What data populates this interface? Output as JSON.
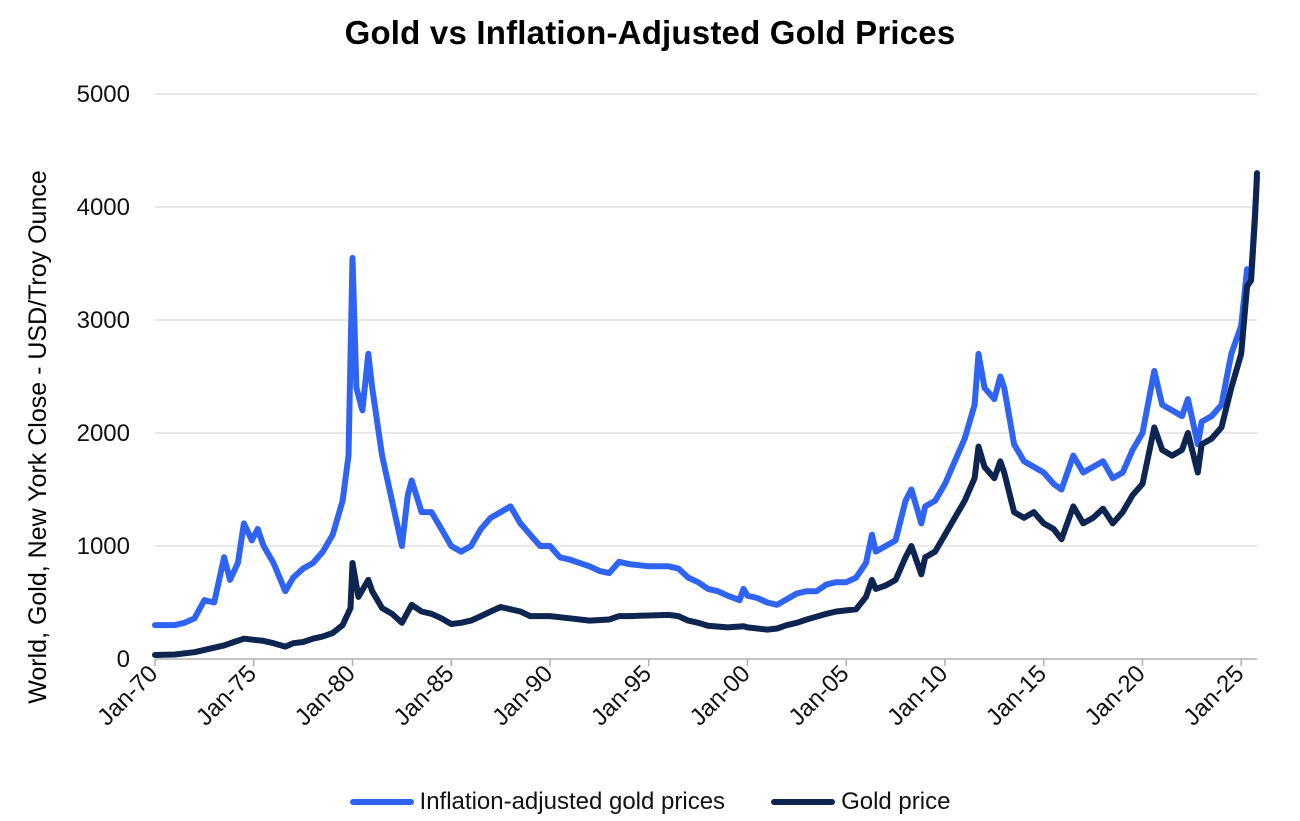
{
  "chart_data": {
    "type": "line",
    "title": "Gold vs Inflation-Adjusted Gold Prices",
    "ylabel": "World, Gold, New York Close - USD/Troy Ounce",
    "xlabel": "",
    "ylim": [
      0,
      5000
    ],
    "y_ticks": [
      "0",
      "1000",
      "2000",
      "3000",
      "4000",
      "5000"
    ],
    "x_range": [
      1970.0,
      2025.8
    ],
    "x_ticks": [
      {
        "label": "Jan-70",
        "year": 1970
      },
      {
        "label": "Jan-75",
        "year": 1975
      },
      {
        "label": "Jan-80",
        "year": 1980
      },
      {
        "label": "Jan-85",
        "year": 1985
      },
      {
        "label": "Jan-90",
        "year": 1990
      },
      {
        "label": "Jan-95",
        "year": 1995
      },
      {
        "label": "Jan-00",
        "year": 2000
      },
      {
        "label": "Jan-05",
        "year": 2005
      },
      {
        "label": "Jan-10",
        "year": 2010
      },
      {
        "label": "Jan-15",
        "year": 2015
      },
      {
        "label": "Jan-20",
        "year": 2020
      },
      {
        "label": "Jan-25",
        "year": 2025
      }
    ],
    "grid": true,
    "legend_position": "bottom",
    "series": [
      {
        "name": "Inflation-adjusted gold prices",
        "color": "#2f63f2",
        "points": [
          [
            1970.0,
            300
          ],
          [
            1971.0,
            300
          ],
          [
            1971.5,
            320
          ],
          [
            1972.0,
            360
          ],
          [
            1972.5,
            520
          ],
          [
            1973.0,
            500
          ],
          [
            1973.5,
            900
          ],
          [
            1973.8,
            700
          ],
          [
            1974.2,
            850
          ],
          [
            1974.5,
            1200
          ],
          [
            1974.9,
            1050
          ],
          [
            1975.2,
            1150
          ],
          [
            1975.5,
            1000
          ],
          [
            1976.0,
            850
          ],
          [
            1976.6,
            600
          ],
          [
            1977.0,
            720
          ],
          [
            1977.5,
            800
          ],
          [
            1978.0,
            850
          ],
          [
            1978.5,
            950
          ],
          [
            1979.0,
            1100
          ],
          [
            1979.5,
            1400
          ],
          [
            1979.8,
            1800
          ],
          [
            1980.0,
            3550
          ],
          [
            1980.2,
            2400
          ],
          [
            1980.5,
            2200
          ],
          [
            1980.8,
            2700
          ],
          [
            1981.0,
            2400
          ],
          [
            1981.5,
            1800
          ],
          [
            1982.0,
            1400
          ],
          [
            1982.5,
            1000
          ],
          [
            1982.8,
            1450
          ],
          [
            1983.0,
            1580
          ],
          [
            1983.5,
            1300
          ],
          [
            1984.0,
            1300
          ],
          [
            1984.5,
            1150
          ],
          [
            1985.0,
            1000
          ],
          [
            1985.5,
            950
          ],
          [
            1986.0,
            1000
          ],
          [
            1986.5,
            1150
          ],
          [
            1987.0,
            1250
          ],
          [
            1987.5,
            1300
          ],
          [
            1988.0,
            1350
          ],
          [
            1988.5,
            1200
          ],
          [
            1989.0,
            1100
          ],
          [
            1989.5,
            1000
          ],
          [
            1990.0,
            1000
          ],
          [
            1990.5,
            900
          ],
          [
            1991.0,
            880
          ],
          [
            1992.0,
            820
          ],
          [
            1992.5,
            780
          ],
          [
            1993.0,
            760
          ],
          [
            1993.5,
            860
          ],
          [
            1994.0,
            840
          ],
          [
            1995.0,
            820
          ],
          [
            1996.0,
            820
          ],
          [
            1996.5,
            800
          ],
          [
            1997.0,
            720
          ],
          [
            1997.5,
            680
          ],
          [
            1998.0,
            620
          ],
          [
            1998.5,
            600
          ],
          [
            1999.0,
            560
          ],
          [
            1999.6,
            520
          ],
          [
            1999.8,
            620
          ],
          [
            2000.0,
            560
          ],
          [
            2000.5,
            540
          ],
          [
            2001.0,
            500
          ],
          [
            2001.5,
            480
          ],
          [
            2002.0,
            530
          ],
          [
            2002.5,
            580
          ],
          [
            2003.0,
            600
          ],
          [
            2003.5,
            600
          ],
          [
            2004.0,
            660
          ],
          [
            2004.5,
            680
          ],
          [
            2005.0,
            680
          ],
          [
            2005.5,
            720
          ],
          [
            2006.0,
            850
          ],
          [
            2006.3,
            1100
          ],
          [
            2006.5,
            950
          ],
          [
            2007.0,
            1000
          ],
          [
            2007.5,
            1050
          ],
          [
            2008.0,
            1400
          ],
          [
            2008.3,
            1500
          ],
          [
            2008.8,
            1200
          ],
          [
            2009.0,
            1350
          ],
          [
            2009.5,
            1400
          ],
          [
            2010.0,
            1550
          ],
          [
            2010.5,
            1750
          ],
          [
            2011.0,
            1950
          ],
          [
            2011.5,
            2250
          ],
          [
            2011.7,
            2700
          ],
          [
            2012.0,
            2400
          ],
          [
            2012.5,
            2300
          ],
          [
            2012.8,
            2500
          ],
          [
            2013.0,
            2400
          ],
          [
            2013.5,
            1900
          ],
          [
            2014.0,
            1750
          ],
          [
            2014.5,
            1700
          ],
          [
            2015.0,
            1650
          ],
          [
            2015.5,
            1550
          ],
          [
            2015.9,
            1500
          ],
          [
            2016.5,
            1800
          ],
          [
            2017.0,
            1650
          ],
          [
            2017.5,
            1700
          ],
          [
            2018.0,
            1750
          ],
          [
            2018.5,
            1600
          ],
          [
            2019.0,
            1650
          ],
          [
            2019.5,
            1850
          ],
          [
            2020.0,
            2000
          ],
          [
            2020.6,
            2550
          ],
          [
            2021.0,
            2250
          ],
          [
            2021.5,
            2200
          ],
          [
            2022.0,
            2150
          ],
          [
            2022.3,
            2300
          ],
          [
            2022.8,
            1900
          ],
          [
            2023.0,
            2100
          ],
          [
            2023.5,
            2150
          ],
          [
            2024.0,
            2250
          ],
          [
            2024.5,
            2700
          ],
          [
            2025.0,
            2950
          ],
          [
            2025.3,
            3450
          ],
          [
            2025.5,
            3400
          ],
          [
            2025.7,
            3950
          ],
          [
            2025.8,
            4250
          ]
        ]
      },
      {
        "name": "Gold price",
        "color": "#0d2550",
        "points": [
          [
            1970.0,
            35
          ],
          [
            1971.0,
            40
          ],
          [
            1972.0,
            60
          ],
          [
            1973.0,
            100
          ],
          [
            1973.5,
            120
          ],
          [
            1974.0,
            150
          ],
          [
            1974.5,
            180
          ],
          [
            1975.0,
            170
          ],
          [
            1975.5,
            160
          ],
          [
            1976.0,
            140
          ],
          [
            1976.6,
            110
          ],
          [
            1977.0,
            140
          ],
          [
            1977.5,
            150
          ],
          [
            1978.0,
            180
          ],
          [
            1978.5,
            200
          ],
          [
            1979.0,
            230
          ],
          [
            1979.5,
            300
          ],
          [
            1979.9,
            450
          ],
          [
            1980.0,
            850
          ],
          [
            1980.3,
            550
          ],
          [
            1980.8,
            700
          ],
          [
            1981.0,
            600
          ],
          [
            1981.5,
            450
          ],
          [
            1982.0,
            400
          ],
          [
            1982.5,
            320
          ],
          [
            1983.0,
            480
          ],
          [
            1983.5,
            420
          ],
          [
            1984.0,
            400
          ],
          [
            1984.5,
            360
          ],
          [
            1985.0,
            310
          ],
          [
            1985.5,
            320
          ],
          [
            1986.0,
            340
          ],
          [
            1986.5,
            380
          ],
          [
            1987.0,
            420
          ],
          [
            1987.5,
            460
          ],
          [
            1988.0,
            440
          ],
          [
            1988.5,
            420
          ],
          [
            1989.0,
            380
          ],
          [
            1990.0,
            380
          ],
          [
            1991.0,
            360
          ],
          [
            1992.0,
            340
          ],
          [
            1993.0,
            350
          ],
          [
            1993.5,
            380
          ],
          [
            1994.0,
            380
          ],
          [
            1995.0,
            385
          ],
          [
            1996.0,
            390
          ],
          [
            1996.5,
            380
          ],
          [
            1997.0,
            340
          ],
          [
            1997.5,
            320
          ],
          [
            1998.0,
            295
          ],
          [
            1999.0,
            280
          ],
          [
            1999.8,
            290
          ],
          [
            2000.0,
            280
          ],
          [
            2001.0,
            260
          ],
          [
            2001.5,
            270
          ],
          [
            2002.0,
            300
          ],
          [
            2002.5,
            320
          ],
          [
            2003.0,
            350
          ],
          [
            2004.0,
            400
          ],
          [
            2004.5,
            420
          ],
          [
            2005.0,
            430
          ],
          [
            2005.5,
            440
          ],
          [
            2006.0,
            550
          ],
          [
            2006.3,
            700
          ],
          [
            2006.5,
            620
          ],
          [
            2007.0,
            650
          ],
          [
            2007.5,
            700
          ],
          [
            2008.0,
            900
          ],
          [
            2008.3,
            1000
          ],
          [
            2008.8,
            750
          ],
          [
            2009.0,
            900
          ],
          [
            2009.5,
            950
          ],
          [
            2010.0,
            1100
          ],
          [
            2010.5,
            1250
          ],
          [
            2011.0,
            1400
          ],
          [
            2011.5,
            1600
          ],
          [
            2011.7,
            1880
          ],
          [
            2012.0,
            1700
          ],
          [
            2012.5,
            1600
          ],
          [
            2012.8,
            1750
          ],
          [
            2013.0,
            1650
          ],
          [
            2013.5,
            1300
          ],
          [
            2014.0,
            1250
          ],
          [
            2014.5,
            1300
          ],
          [
            2015.0,
            1200
          ],
          [
            2015.5,
            1150
          ],
          [
            2015.9,
            1060
          ],
          [
            2016.5,
            1350
          ],
          [
            2017.0,
            1200
          ],
          [
            2017.5,
            1250
          ],
          [
            2018.0,
            1330
          ],
          [
            2018.5,
            1200
          ],
          [
            2019.0,
            1300
          ],
          [
            2019.5,
            1450
          ],
          [
            2020.0,
            1550
          ],
          [
            2020.6,
            2050
          ],
          [
            2021.0,
            1850
          ],
          [
            2021.5,
            1800
          ],
          [
            2022.0,
            1850
          ],
          [
            2022.3,
            2000
          ],
          [
            2022.8,
            1650
          ],
          [
            2023.0,
            1900
          ],
          [
            2023.5,
            1950
          ],
          [
            2024.0,
            2050
          ],
          [
            2024.5,
            2400
          ],
          [
            2025.0,
            2700
          ],
          [
            2025.3,
            3300
          ],
          [
            2025.5,
            3350
          ],
          [
            2025.7,
            3900
          ],
          [
            2025.8,
            4300
          ]
        ]
      }
    ]
  }
}
